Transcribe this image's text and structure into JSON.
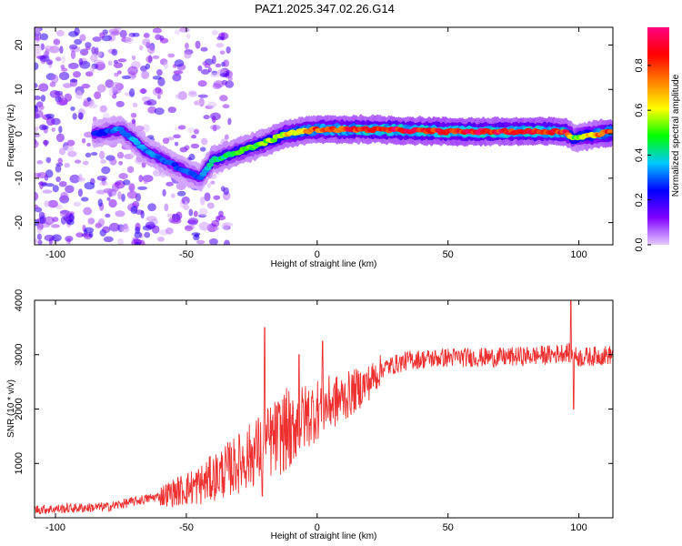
{
  "chart_data": [
    {
      "type": "heatmap",
      "title": "PAZ1.2025.347.02.26.G14",
      "xlabel": "Height of straight line (km)",
      "ylabel": "Frequency (Hz)",
      "xlim": [
        -108,
        113
      ],
      "ylim": [
        -25,
        24
      ],
      "xticks": [
        -100,
        -50,
        0,
        50,
        100
      ],
      "yticks": [
        -20,
        -10,
        0,
        10,
        20
      ],
      "colorbar": {
        "label": "Normalized spectral amplitude",
        "range": [
          0.0,
          0.97
        ],
        "ticks": [
          "0.0",
          "0.2",
          "0.4",
          "0.6",
          "0.8"
        ],
        "colors": [
          "#e6ccff",
          "#8000ff",
          "#0000ff",
          "#00c8ff",
          "#00ff00",
          "#ffff00",
          "#ff8000",
          "#ff0000",
          "#ff0080"
        ]
      },
      "ridge": {
        "description_points_x": [
          -85,
          -75,
          -65,
          -55,
          -45,
          -40,
          -30,
          -20,
          -12,
          0,
          10,
          20,
          50,
          80,
          95,
          98,
          113
        ],
        "description_points_y": [
          0,
          1,
          -4,
          -7,
          -10,
          -6,
          -4,
          -2,
          0,
          1,
          1,
          1,
          0.5,
          0.5,
          0.5,
          -1,
          0.5
        ],
        "amplitude": [
          0.25,
          0.35,
          0.35,
          0.3,
          0.3,
          0.45,
          0.5,
          0.55,
          0.65,
          0.8,
          0.85,
          0.9,
          0.92,
          0.92,
          0.9,
          0.5,
          0.92
        ]
      }
    },
    {
      "type": "line",
      "xlabel": "Height of straight line (km)",
      "ylabel": "SNR (10 * v/v)",
      "xlim": [
        -108,
        113
      ],
      "ylim": [
        0,
        4000
      ],
      "xticks": [
        -100,
        -50,
        0,
        50,
        100
      ],
      "yticks": [
        1000,
        2000,
        3000,
        4000
      ],
      "series": [
        {
          "name": "SNR",
          "color": "#ee3030",
          "trend_x": [
            -108,
            -80,
            -60,
            -45,
            -30,
            -15,
            0,
            10,
            20,
            25,
            35,
            50,
            70,
            90,
            95,
            100,
            113
          ],
          "trend_y": [
            150,
            200,
            400,
            600,
            1000,
            1500,
            2000,
            2200,
            2500,
            2750,
            2900,
            2950,
            2950,
            3000,
            3050,
            2950,
            3000
          ],
          "spikes": [
            {
              "x": -20,
              "y": 3500
            },
            {
              "x": -21,
              "y": 400
            },
            {
              "x": -7,
              "y": 3000
            },
            {
              "x": -10,
              "y": 1000
            },
            {
              "x": 2,
              "y": 3250
            },
            {
              "x": 97,
              "y": 4000
            },
            {
              "x": 98,
              "y": 2000
            }
          ]
        }
      ]
    }
  ]
}
